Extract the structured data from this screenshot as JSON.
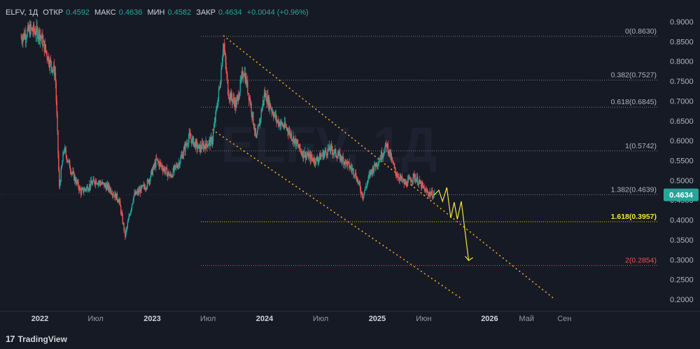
{
  "header": {
    "symbol": "ELFV, 1Д",
    "open_label": "ОТКР",
    "open": "0.4592",
    "high_label": "МАКС",
    "high": "0.4636",
    "low_label": "МИН",
    "low": "0.4582",
    "close_label": "ЗАКР",
    "close": "0.4634",
    "change": "+0.0044 (+0.96%)"
  },
  "branding": {
    "logo_text": "TradingView"
  },
  "colors": {
    "background": "#161a25",
    "up": "#26a69a",
    "down": "#ef5350",
    "fib": "#f0a030",
    "forecast": "#f5e63a",
    "last_price_bg": "#26a69a"
  },
  "chart_data": {
    "type": "candlestick",
    "y_range": [
      0.17,
      0.92
    ],
    "y_ticks": [
      "0.9000",
      "0.8500",
      "0.8000",
      "0.7500",
      "0.7000",
      "0.6500",
      "0.6000",
      "0.5500",
      "0.5000",
      "0.4500",
      "0.4000",
      "0.3500",
      "0.3000",
      "0.2500",
      "0.2000"
    ],
    "x_ticks": [
      "2022",
      "Июл",
      "2023",
      "Июл",
      "2024",
      "Июл",
      "2025",
      "Июн",
      "2026",
      "Май",
      "Сен"
    ],
    "last_price": "0.4634",
    "fib_levels": [
      {
        "label": "0(0.8630)",
        "value": 0.863
      },
      {
        "label": "0.382(0.7527)",
        "value": 0.7527
      },
      {
        "label": "0.618(0.6845)",
        "value": 0.6845
      },
      {
        "label": "1(0.5742)",
        "value": 0.5742
      },
      {
        "label": "1.382(0.4639)",
        "value": 0.4639
      },
      {
        "label": "1.618(0.3957)",
        "value": 0.3957
      },
      {
        "label": "2(0.2854)",
        "value": 0.2854
      }
    ],
    "price_path": [
      [
        "2021-11-01",
        0.86
      ],
      [
        "2021-12-01",
        0.88
      ],
      [
        "2022-01-01",
        0.87
      ],
      [
        "2022-02-01",
        0.8
      ],
      [
        "2022-02-20",
        0.77
      ],
      [
        "2022-03-05",
        0.48
      ],
      [
        "2022-03-20",
        0.58
      ],
      [
        "2022-04-15",
        0.52
      ],
      [
        "2022-05-15",
        0.47
      ],
      [
        "2022-07-01",
        0.5
      ],
      [
        "2022-08-15",
        0.48
      ],
      [
        "2022-09-15",
        0.45
      ],
      [
        "2022-10-05",
        0.36
      ],
      [
        "2022-11-01",
        0.46
      ],
      [
        "2022-12-15",
        0.49
      ],
      [
        "2023-01-15",
        0.55
      ],
      [
        "2023-03-01",
        0.51
      ],
      [
        "2023-04-01",
        0.55
      ],
      [
        "2023-05-01",
        0.61
      ],
      [
        "2023-06-01",
        0.58
      ],
      [
        "2023-07-15",
        0.6
      ],
      [
        "2023-08-10",
        0.75
      ],
      [
        "2023-08-20",
        0.85
      ],
      [
        "2023-09-05",
        0.72
      ],
      [
        "2023-10-01",
        0.69
      ],
      [
        "2023-10-25",
        0.78
      ],
      [
        "2023-11-15",
        0.7
      ],
      [
        "2023-12-05",
        0.6
      ],
      [
        "2024-01-01",
        0.72
      ],
      [
        "2024-02-10",
        0.65
      ],
      [
        "2024-03-15",
        0.63
      ],
      [
        "2024-05-01",
        0.57
      ],
      [
        "2024-06-15",
        0.55
      ],
      [
        "2024-08-01",
        0.58
      ],
      [
        "2024-09-15",
        0.55
      ],
      [
        "2024-10-20",
        0.52
      ],
      [
        "2024-11-15",
        0.46
      ],
      [
        "2024-12-10",
        0.52
      ],
      [
        "2025-01-05",
        0.55
      ],
      [
        "2025-02-01",
        0.59
      ],
      [
        "2025-03-01",
        0.52
      ],
      [
        "2025-04-01",
        0.49
      ],
      [
        "2025-05-01",
        0.51
      ],
      [
        "2025-06-10",
        0.47
      ],
      [
        "2025-07-05",
        0.4634
      ]
    ],
    "forecast_path": [
      [
        "2025-07-05",
        0.463
      ],
      [
        "2025-07-20",
        0.475
      ],
      [
        "2025-08-01",
        0.447
      ],
      [
        "2025-08-15",
        0.482
      ],
      [
        "2025-08-28",
        0.405
      ],
      [
        "2025-09-08",
        0.445
      ],
      [
        "2025-09-18",
        0.402
      ],
      [
        "2025-10-01",
        0.447
      ],
      [
        "2025-10-25",
        0.298
      ]
    ],
    "channel_upper": [
      [
        "2023-08-20",
        0.865
      ],
      [
        "2026-08-01",
        0.2
      ]
    ],
    "channel_lower": [
      [
        "2023-07-15",
        0.628
      ],
      [
        "2025-10-05",
        0.2
      ]
    ]
  }
}
